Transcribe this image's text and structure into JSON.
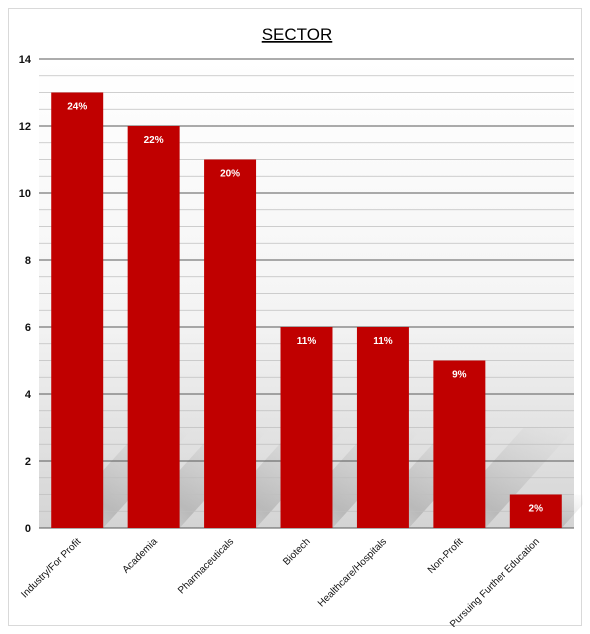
{
  "chart_data": {
    "type": "bar",
    "title": "SECTOR",
    "xlabel": "",
    "ylabel": "",
    "categories": [
      "Industry/For Profit",
      "Academia",
      "Pharmaceuticals",
      "Biotech",
      "Healthcare/Hospitals",
      "Non-Profit",
      "Pursuing Further Education"
    ],
    "values": [
      13,
      12,
      11,
      6,
      6,
      5,
      1
    ],
    "data_labels": [
      "24%",
      "22%",
      "20%",
      "11%",
      "11%",
      "9%",
      "2%"
    ],
    "ylim": [
      0,
      14
    ],
    "yticks": [
      "0",
      "2",
      "4",
      "6",
      "8",
      "10",
      "12",
      "14"
    ],
    "grid": true,
    "legend": "none",
    "colors": {
      "bar": "#c00000",
      "major_grid": "#595959",
      "minor_grid": "#bfbfbf",
      "plot_bg_top": "#ffffff",
      "plot_bg_bottom": "#d9d9d9"
    }
  }
}
